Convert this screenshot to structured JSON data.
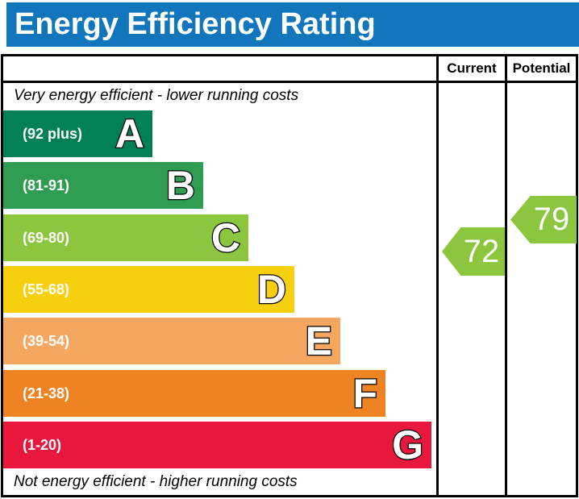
{
  "title": "Energy Efficiency Rating",
  "header": {
    "current": "Current",
    "potential": "Potential"
  },
  "captions": {
    "top": "Very energy efficient - lower running costs",
    "bottom": "Not energy efficient - higher running costs"
  },
  "chart_data": {
    "type": "bar",
    "title": "Energy Efficiency Rating",
    "orientation": "horizontal",
    "categories": [
      "A",
      "B",
      "C",
      "D",
      "E",
      "F",
      "G"
    ],
    "bands": [
      {
        "letter": "A",
        "range_label": "(92 plus)",
        "range_min": 92,
        "range_max": 100,
        "color": "#008054"
      },
      {
        "letter": "B",
        "range_label": "(81-91)",
        "range_min": 81,
        "range_max": 91,
        "color": "#2e9d52"
      },
      {
        "letter": "C",
        "range_label": "(69-80)",
        "range_min": 69,
        "range_max": 80,
        "color": "#8cc63f"
      },
      {
        "letter": "D",
        "range_label": "(55-68)",
        "range_min": 55,
        "range_max": 68,
        "color": "#f6cf0e"
      },
      {
        "letter": "E",
        "range_label": "(39-54)",
        "range_min": 39,
        "range_max": 54,
        "color": "#f5a75f"
      },
      {
        "letter": "F",
        "range_label": "(21-38)",
        "range_min": 21,
        "range_max": 38,
        "color": "#ee8323"
      },
      {
        "letter": "G",
        "range_label": "(1-20)",
        "range_min": 1,
        "range_max": 20,
        "color": "#e8173d"
      }
    ],
    "current": {
      "value": 72,
      "band": "C",
      "color": "#8cc63f"
    },
    "potential": {
      "value": 79,
      "band": "C",
      "color": "#8cc63f"
    },
    "colors": {
      "banner": "#1176bc",
      "border": "#000000"
    }
  }
}
